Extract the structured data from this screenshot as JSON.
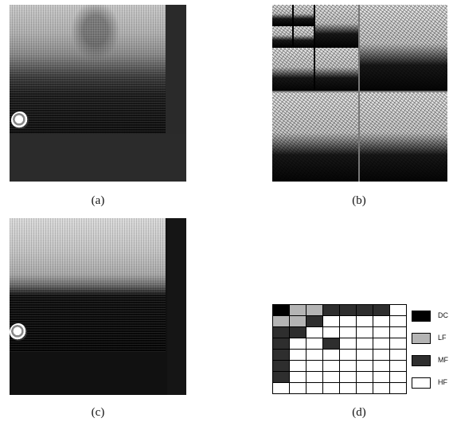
{
  "captions": {
    "a": "(a)",
    "b": "(b)",
    "c": "(c)",
    "d": "(d)"
  },
  "legend": [
    {
      "label": "DC",
      "color": "#000000"
    },
    {
      "label": "LF",
      "color": "#b4b4b4"
    },
    {
      "label": "MF",
      "color": "#2e2e2e"
    },
    {
      "label": "HF",
      "color": "#ffffff"
    }
  ],
  "block_map": [
    [
      "DC",
      "LF",
      "LF",
      "MF",
      "MF",
      "MF",
      "MF",
      "HF"
    ],
    [
      "LF",
      "LF",
      "MF",
      "HF",
      "HF",
      "HF",
      "HF",
      "HF"
    ],
    [
      "MF",
      "MF",
      "HF",
      "HF",
      "HF",
      "HF",
      "HF",
      "HF"
    ],
    [
      "MF",
      "HF",
      "HF",
      "MF",
      "HF",
      "HF",
      "HF",
      "HF"
    ],
    [
      "MF",
      "HF",
      "HF",
      "HF",
      "HF",
      "HF",
      "HF",
      "HF"
    ],
    [
      "MF",
      "HF",
      "HF",
      "HF",
      "HF",
      "HF",
      "HF",
      "HF"
    ],
    [
      "MF",
      "HF",
      "HF",
      "HF",
      "HF",
      "HF",
      "HF",
      "HF"
    ],
    [
      "HF",
      "HF",
      "HF",
      "HF",
      "HF",
      "HF",
      "HF",
      "HF"
    ]
  ]
}
